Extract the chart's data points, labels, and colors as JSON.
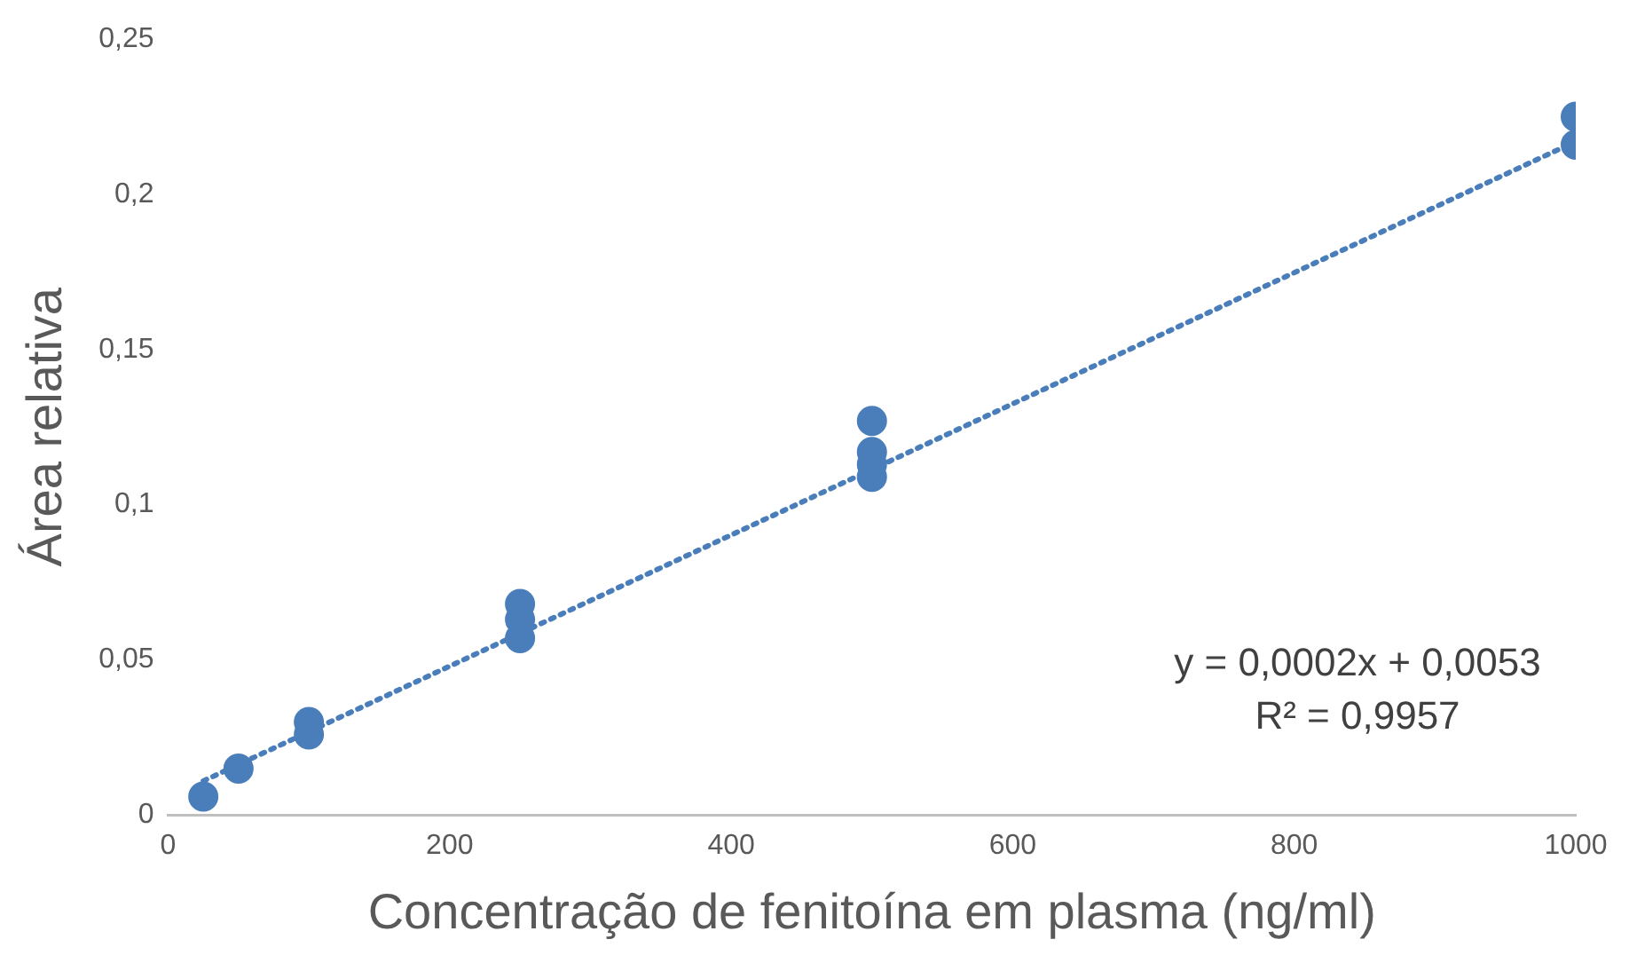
{
  "chart_data": {
    "type": "scatter",
    "xlabel": "Concentração de fenitoína em plasma (ng/ml)",
    "ylabel": "Área relativa",
    "xlim": [
      0,
      1000
    ],
    "xticks": [
      0,
      200,
      400,
      600,
      800,
      1000
    ],
    "ylim": [
      0,
      0.25
    ],
    "yticks": [
      {
        "value": 0,
        "label": "0"
      },
      {
        "value": 0.05,
        "label": "0,05"
      },
      {
        "value": 0.1,
        "label": "0,1"
      },
      {
        "value": 0.15,
        "label": "0,15"
      },
      {
        "value": 0.2,
        "label": "0,2"
      },
      {
        "value": 0.25,
        "label": "0,25"
      }
    ],
    "grid": false,
    "legend": false,
    "series": [
      {
        "color": "#4a7ebb",
        "marker": "circle",
        "x": [
          25,
          50,
          100,
          100,
          250,
          250,
          250,
          500,
          500,
          500,
          500,
          1000,
          1000
        ],
        "values": [
          0.006,
          0.015,
          0.03,
          0.026,
          0.068,
          0.063,
          0.057,
          0.127,
          0.117,
          0.113,
          0.109,
          0.225,
          0.216
        ]
      },
      {
        "type": "line",
        "color": "#4a7ebb",
        "marker": "none",
        "line_style": "dotted",
        "x": [
          25,
          1000
        ],
        "values": [
          0.011,
          0.217
        ]
      }
    ],
    "annotations": [
      {
        "text": "y = 0,0002x + 0,0053"
      },
      {
        "text": "R² = 0,9957"
      }
    ]
  }
}
